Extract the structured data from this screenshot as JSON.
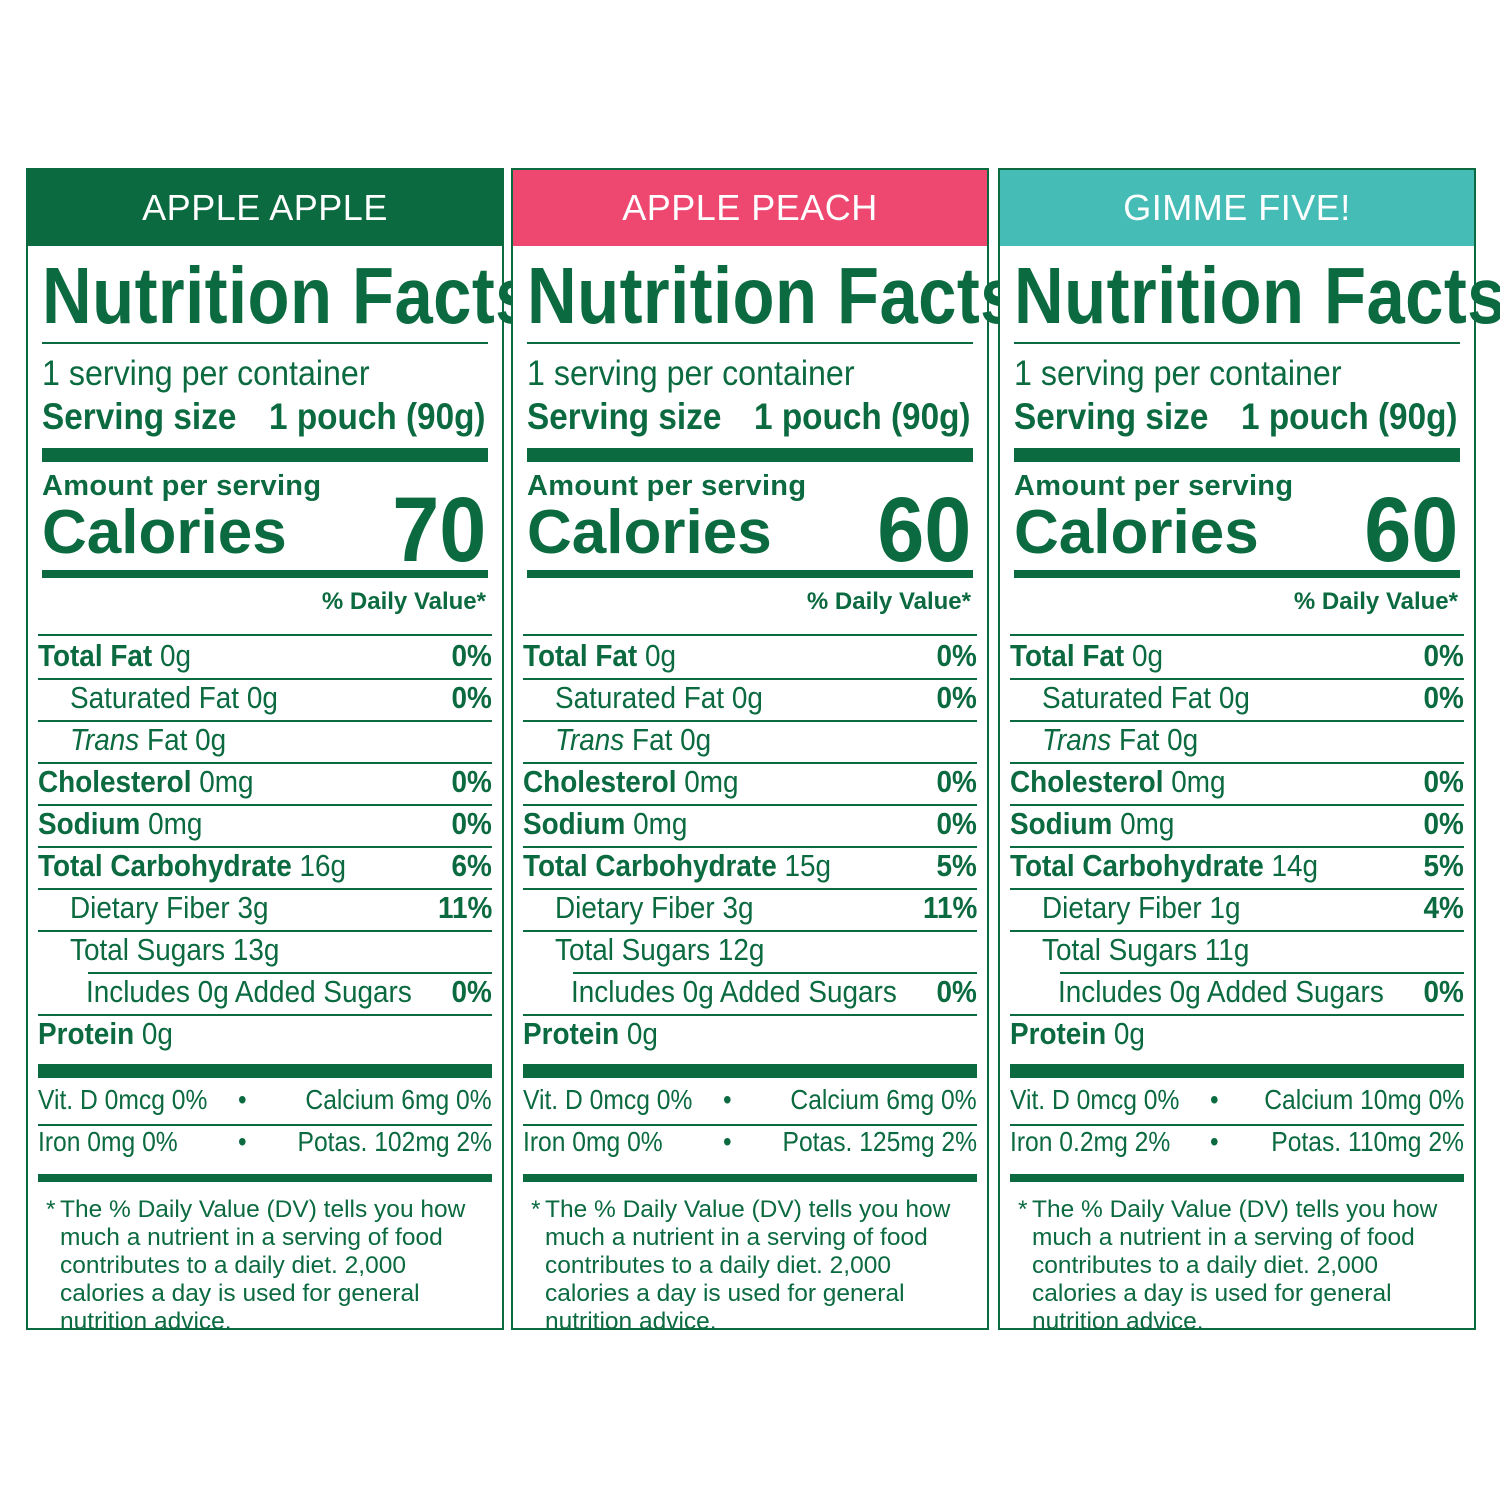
{
  "colors": {
    "green": "#0b6a3f",
    "pink": "#ee4870",
    "teal": "#45bcb5"
  },
  "common": {
    "title": "Nutrition Facts",
    "servings_per_container": "1 serving per container",
    "serving_size_label": "Serving size",
    "serving_size_value": "1 pouch (90g)",
    "amount_per_serving": "Amount per serving",
    "calories_label": "Calories",
    "daily_value_header": "% Daily Value*",
    "footnote_star": "*",
    "footnote": "The % Daily Value (DV) tells you how much a nutrient in a serving of food contributes to a daily diet. 2,000 calories a day is used for general nutrition advice.",
    "labels": {
      "total_fat": "Total Fat",
      "saturated_fat": "Saturated Fat",
      "trans": "Trans",
      "trans_fat": "Fat",
      "cholesterol": "Cholesterol",
      "sodium": "Sodium",
      "total_carb": "Total Carbohydrate",
      "fiber": "Dietary Fiber",
      "sugars": "Total Sugars",
      "includes": "Includes",
      "added_sugars": "Added Sugars",
      "protein": "Protein"
    },
    "bullet": "•"
  },
  "panels": [
    {
      "name": "APPLE APPLE",
      "banner_color": "#0b6a3f",
      "calories": "70",
      "total_fat": "0g",
      "total_fat_dv": "0%",
      "saturated_fat": "0g",
      "saturated_fat_dv": "0%",
      "trans_fat": "0g",
      "cholesterol": "0mg",
      "cholesterol_dv": "0%",
      "sodium": "0mg",
      "sodium_dv": "0%",
      "total_carb": "16g",
      "total_carb_dv": "6%",
      "fiber": "3g",
      "fiber_dv": "11%",
      "sugars": "13g",
      "added_sugars": "0g",
      "added_sugars_dv": "0%",
      "protein": "0g",
      "vit_d": "Vit. D 0mcg 0%",
      "calcium": "Calcium 6mg 0%",
      "iron": "Iron 0mg 0%",
      "potassium": "Potas. 102mg 2%"
    },
    {
      "name": "APPLE PEACH",
      "banner_color": "#ee4870",
      "calories": "60",
      "total_fat": "0g",
      "total_fat_dv": "0%",
      "saturated_fat": "0g",
      "saturated_fat_dv": "0%",
      "trans_fat": "0g",
      "cholesterol": "0mg",
      "cholesterol_dv": "0%",
      "sodium": "0mg",
      "sodium_dv": "0%",
      "total_carb": "15g",
      "total_carb_dv": "5%",
      "fiber": "3g",
      "fiber_dv": "11%",
      "sugars": "12g",
      "added_sugars": "0g",
      "added_sugars_dv": "0%",
      "protein": "0g",
      "vit_d": "Vit. D 0mcg 0%",
      "calcium": "Calcium 6mg 0%",
      "iron": "Iron 0mg 0%",
      "potassium": "Potas. 125mg 2%"
    },
    {
      "name": "GIMME FIVE!",
      "banner_color": "#45bcb5",
      "calories": "60",
      "total_fat": "0g",
      "total_fat_dv": "0%",
      "saturated_fat": "0g",
      "saturated_fat_dv": "0%",
      "trans_fat": "0g",
      "cholesterol": "0mg",
      "cholesterol_dv": "0%",
      "sodium": "0mg",
      "sodium_dv": "0%",
      "total_carb": "14g",
      "total_carb_dv": "5%",
      "fiber": "1g",
      "fiber_dv": "4%",
      "sugars": "11g",
      "added_sugars": "0g",
      "added_sugars_dv": "0%",
      "protein": "0g",
      "vit_d": "Vit. D 0mcg 0%",
      "calcium": "Calcium 10mg 0%",
      "iron": "Iron 0.2mg 2%",
      "potassium": "Potas. 110mg 2%"
    }
  ]
}
